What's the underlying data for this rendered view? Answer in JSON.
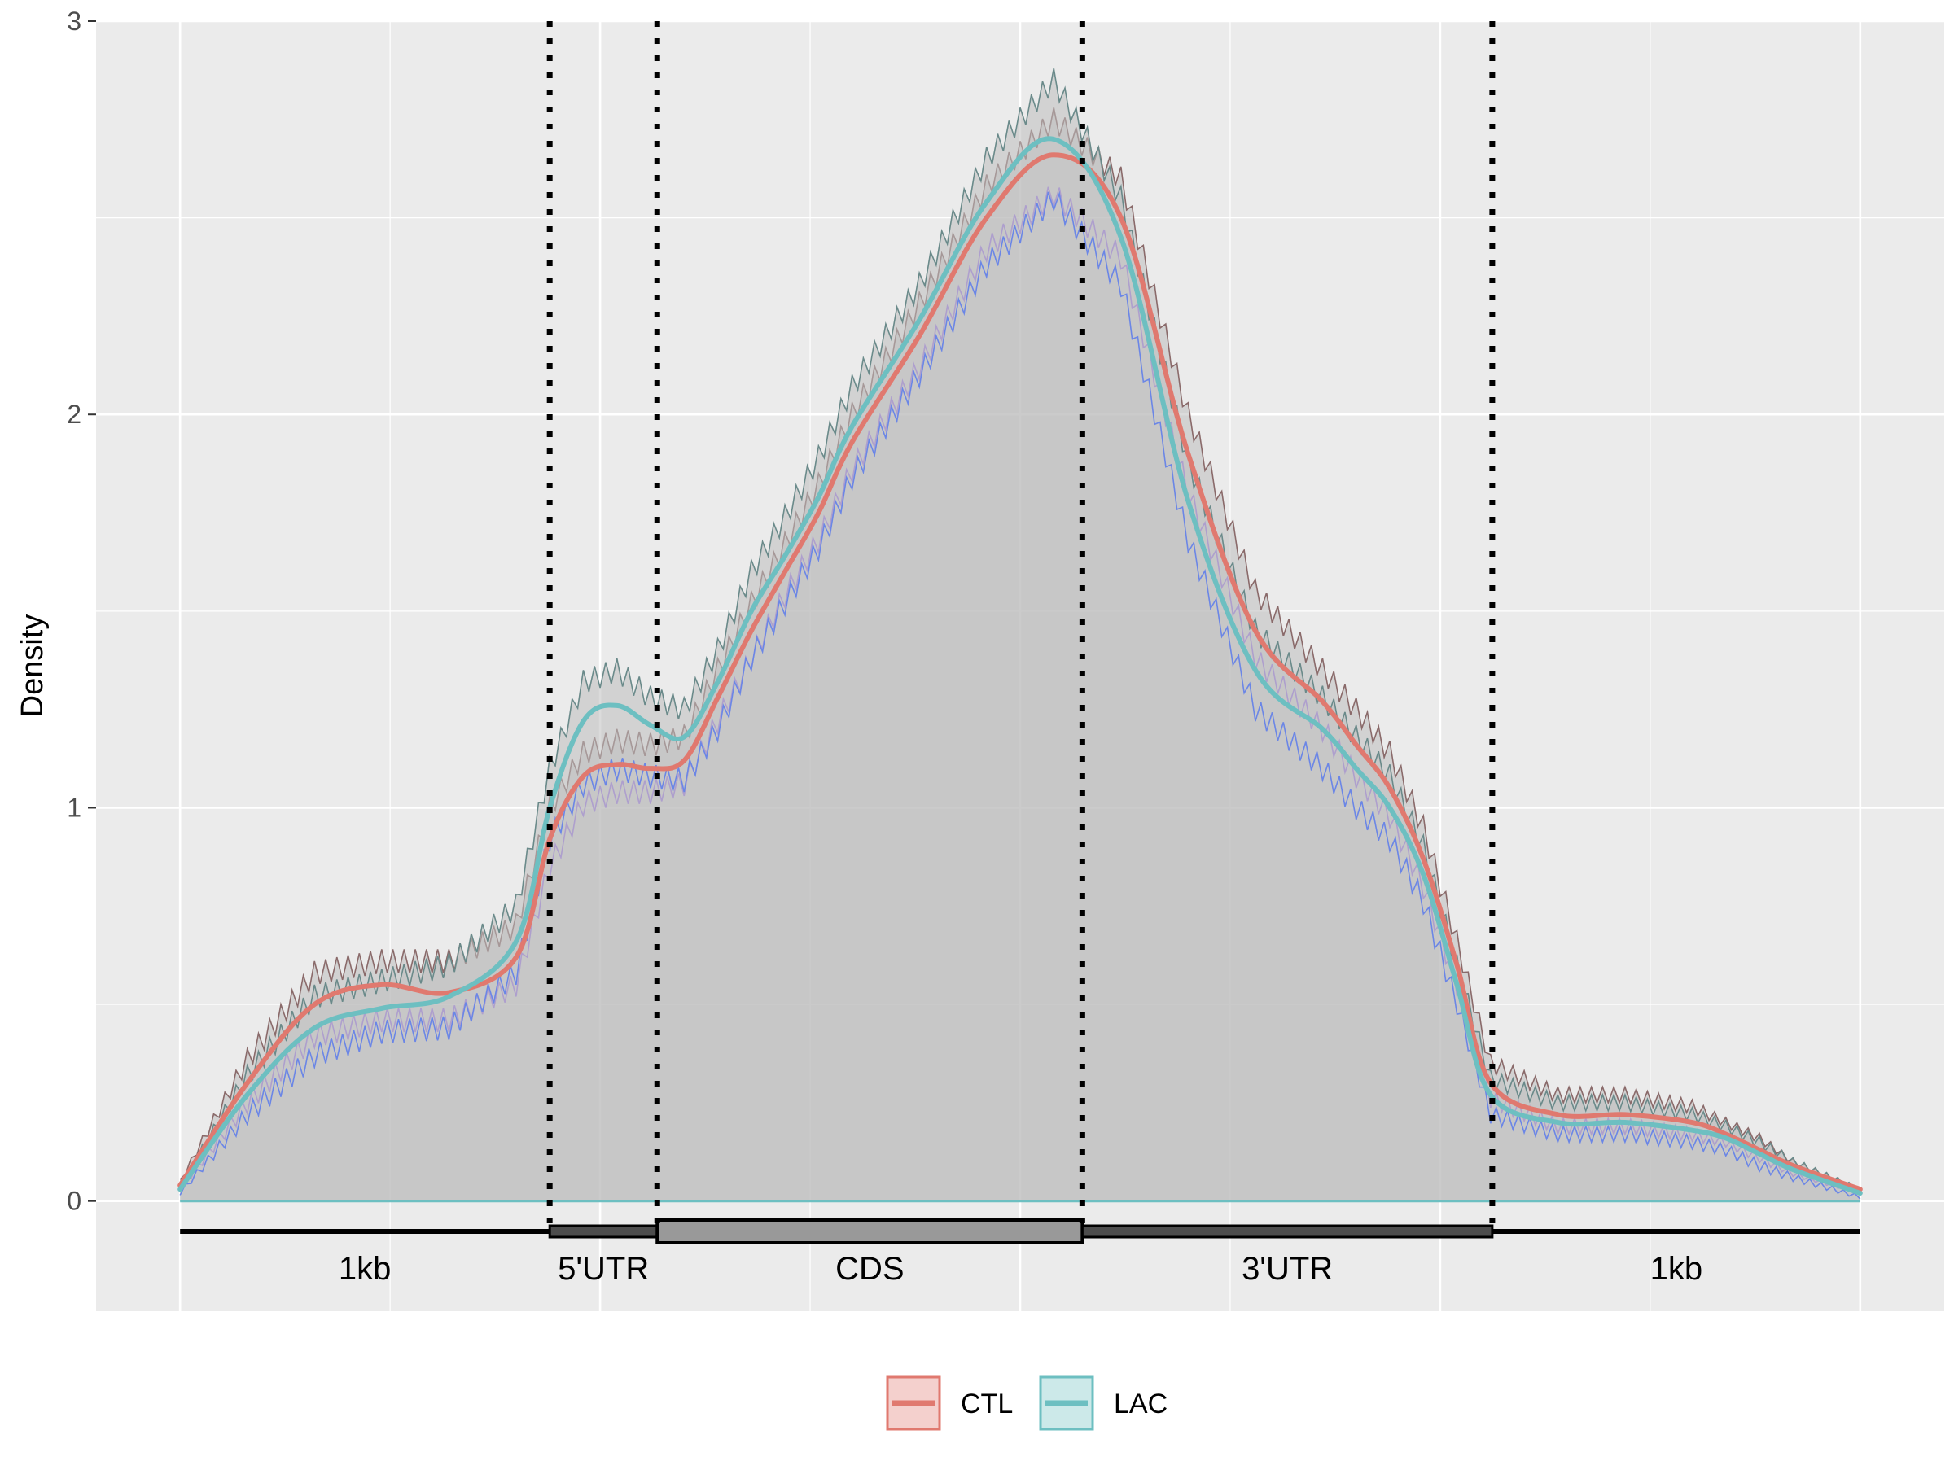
{
  "chart_data": {
    "type": "line",
    "title": "",
    "xlabel": "",
    "ylabel": "Density",
    "ylim": [
      -0.28,
      3.0
    ],
    "xlim": [
      -0.05,
      1.05
    ],
    "y_ticks": [
      0,
      1,
      2,
      3
    ],
    "grid": true,
    "legend_position": "bottom",
    "x": [
      0.0,
      0.04,
      0.08,
      0.12,
      0.16,
      0.2,
      0.22,
      0.24,
      0.26,
      0.28,
      0.3,
      0.32,
      0.34,
      0.36,
      0.38,
      0.4,
      0.44,
      0.48,
      0.52,
      0.56,
      0.6,
      0.64,
      0.68,
      0.7,
      0.72,
      0.74,
      0.76,
      0.78,
      0.82,
      0.86,
      0.9,
      0.92,
      0.94,
      0.96,
      1.0
    ],
    "series": [
      {
        "name": "CTL",
        "color": "#E0796F",
        "values": [
          0.04,
          0.3,
          0.5,
          0.55,
          0.53,
          0.62,
          0.92,
          1.08,
          1.11,
          1.1,
          1.12,
          1.28,
          1.45,
          1.6,
          1.75,
          1.93,
          2.2,
          2.5,
          2.66,
          2.5,
          1.9,
          1.45,
          1.27,
          1.16,
          1.05,
          0.87,
          0.6,
          0.3,
          0.22,
          0.22,
          0.2,
          0.17,
          0.13,
          0.09,
          0.03
        ],
        "band_upper": [
          0.05,
          0.36,
          0.58,
          0.61,
          0.61,
          0.7,
          1.0,
          1.14,
          1.17,
          1.16,
          1.18,
          1.35,
          1.52,
          1.67,
          1.82,
          2.0,
          2.28,
          2.58,
          2.75,
          2.6,
          2.0,
          1.55,
          1.35,
          1.25,
          1.14,
          0.95,
          0.66,
          0.35,
          0.27,
          0.27,
          0.24,
          0.2,
          0.16,
          0.1,
          0.03
        ],
        "band_lower": [
          0.03,
          0.25,
          0.42,
          0.46,
          0.46,
          0.55,
          0.85,
          1.01,
          1.04,
          1.04,
          1.06,
          1.22,
          1.38,
          1.54,
          1.68,
          1.86,
          2.12,
          2.42,
          2.56,
          2.4,
          1.8,
          1.38,
          1.2,
          1.08,
          0.98,
          0.8,
          0.55,
          0.26,
          0.19,
          0.19,
          0.17,
          0.15,
          0.11,
          0.07,
          0.02
        ]
      },
      {
        "name": "LAC",
        "color": "#6DBFC1",
        "values": [
          0.03,
          0.27,
          0.44,
          0.49,
          0.52,
          0.66,
          1.0,
          1.22,
          1.26,
          1.21,
          1.18,
          1.32,
          1.5,
          1.64,
          1.79,
          1.97,
          2.24,
          2.54,
          2.7,
          2.45,
          1.78,
          1.35,
          1.2,
          1.1,
          1.0,
          0.83,
          0.55,
          0.27,
          0.2,
          0.2,
          0.18,
          0.16,
          0.12,
          0.08,
          0.02
        ],
        "band_upper": [
          0.04,
          0.32,
          0.52,
          0.56,
          0.6,
          0.75,
          1.1,
          1.32,
          1.35,
          1.28,
          1.25,
          1.4,
          1.6,
          1.74,
          1.89,
          2.07,
          2.33,
          2.65,
          2.85,
          2.55,
          1.88,
          1.45,
          1.28,
          1.18,
          1.08,
          0.9,
          0.6,
          0.31,
          0.25,
          0.25,
          0.22,
          0.19,
          0.15,
          0.1,
          0.03
        ],
        "band_lower": [
          0.02,
          0.22,
          0.37,
          0.43,
          0.44,
          0.58,
          0.92,
          1.06,
          1.1,
          1.08,
          1.07,
          1.2,
          1.38,
          1.52,
          1.66,
          1.84,
          2.1,
          2.38,
          2.55,
          2.33,
          1.68,
          1.25,
          1.1,
          1.0,
          0.92,
          0.76,
          0.5,
          0.22,
          0.17,
          0.17,
          0.15,
          0.13,
          0.09,
          0.06,
          0.01
        ]
      }
    ],
    "regions": [
      {
        "label": "1kb",
        "start": 0.0,
        "end": 0.22,
        "kind": "flank"
      },
      {
        "label": "5'UTR",
        "start": 0.22,
        "end": 0.284,
        "kind": "utr"
      },
      {
        "label": "CDS",
        "start": 0.284,
        "end": 0.537,
        "kind": "cds"
      },
      {
        "label": "3'UTR",
        "start": 0.537,
        "end": 0.781,
        "kind": "utr"
      },
      {
        "label": "1kb",
        "start": 0.781,
        "end": 1.0,
        "kind": "flank"
      }
    ],
    "boundaries": [
      0.22,
      0.284,
      0.537,
      0.781
    ],
    "baseline_color": "#6DBFC1",
    "ribbon_color": "#BEBEBE"
  }
}
